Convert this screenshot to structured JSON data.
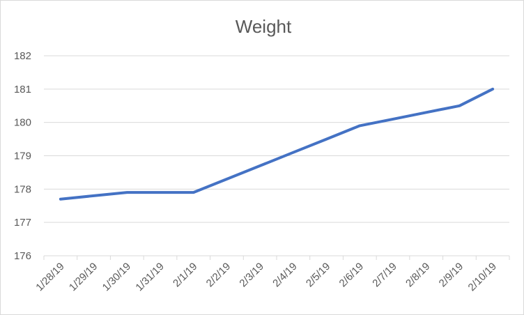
{
  "chart_data": {
    "type": "line",
    "title": "Weight",
    "xlabel": "",
    "ylabel": "",
    "categories": [
      "1/28/19",
      "1/29/19",
      "1/30/19",
      "1/31/19",
      "2/1/19",
      "2/2/19",
      "2/3/19",
      "2/4/19",
      "2/5/19",
      "2/6/19",
      "2/7/19",
      "2/8/19",
      "2/9/19",
      "2/10/19"
    ],
    "yticks": [
      "176",
      "177",
      "178",
      "179",
      "180",
      "181",
      "182"
    ],
    "ylim": [
      176,
      182
    ],
    "grid": true,
    "legend": "none",
    "series": [
      {
        "color": "#4472c4",
        "values": [
          177.7,
          177.8,
          177.9,
          177.9,
          177.9,
          178.3,
          178.7,
          179.1,
          179.5,
          179.9,
          180.1,
          180.3,
          180.5,
          181.0
        ]
      }
    ]
  }
}
